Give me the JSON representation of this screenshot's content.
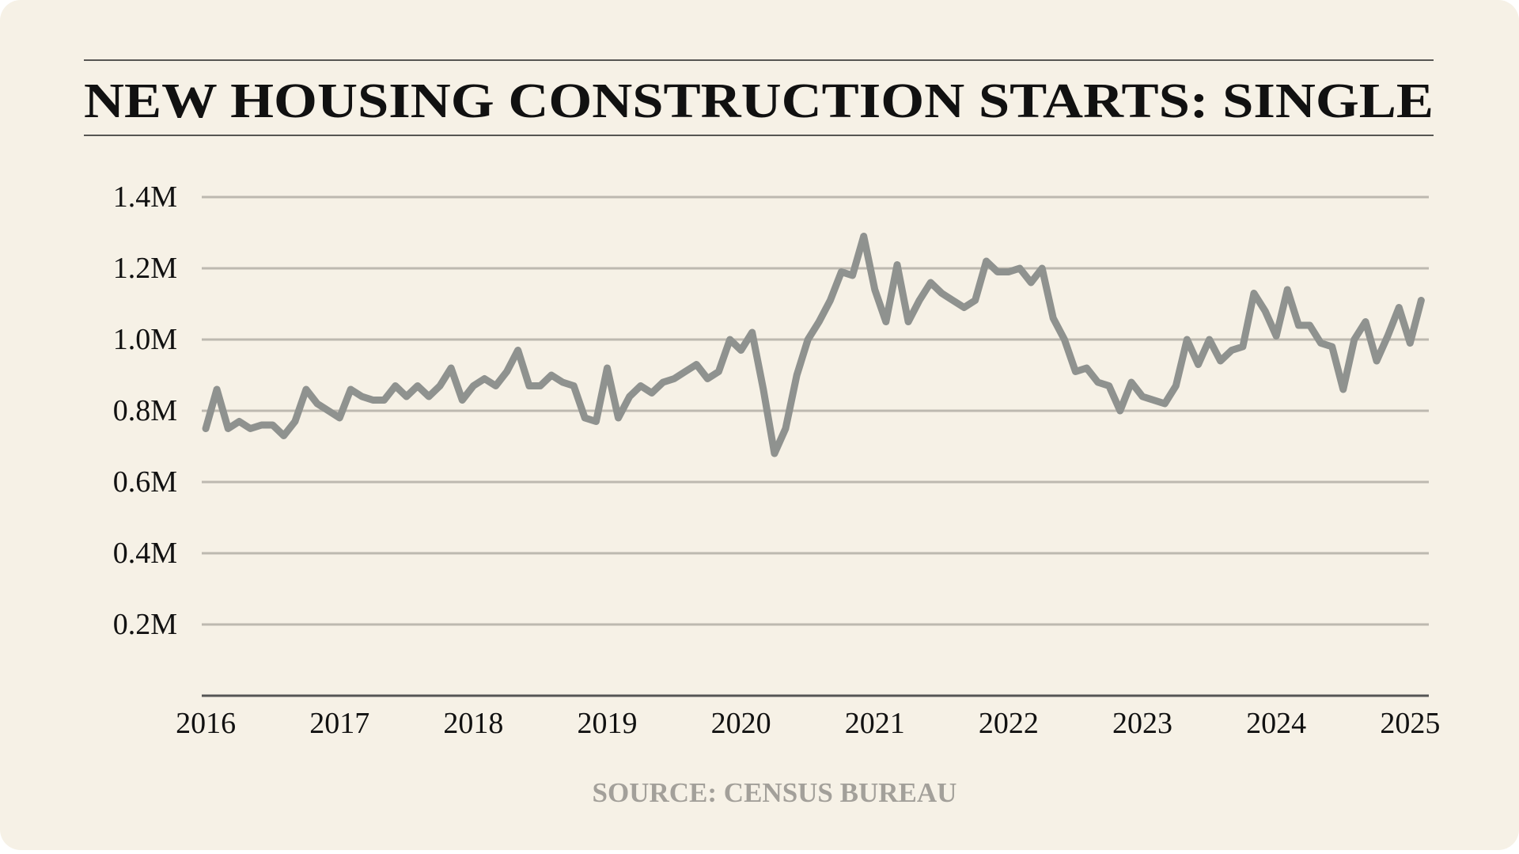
{
  "chart_data": {
    "type": "line",
    "title": "NEW HOUSING CONSTRUCTION STARTS: SINGLE",
    "source": "SOURCE: CENSUS BUREAU",
    "x": [
      2016,
      2016.083,
      2016.167,
      2016.25,
      2016.333,
      2016.417,
      2016.5,
      2016.583,
      2016.667,
      2016.75,
      2016.833,
      2016.917,
      2017,
      2017.083,
      2017.167,
      2017.25,
      2017.333,
      2017.417,
      2017.5,
      2017.583,
      2017.667,
      2017.75,
      2017.833,
      2017.917,
      2018,
      2018.083,
      2018.167,
      2018.25,
      2018.333,
      2018.417,
      2018.5,
      2018.583,
      2018.667,
      2018.75,
      2018.833,
      2018.917,
      2019,
      2019.083,
      2019.167,
      2019.25,
      2019.333,
      2019.417,
      2019.5,
      2019.583,
      2019.667,
      2019.75,
      2019.833,
      2019.917,
      2020,
      2020.083,
      2020.167,
      2020.25,
      2020.333,
      2020.417,
      2020.5,
      2020.583,
      2020.667,
      2020.75,
      2020.833,
      2020.917,
      2021,
      2021.083,
      2021.167,
      2021.25,
      2021.333,
      2021.417,
      2021.5,
      2021.583,
      2021.667,
      2021.75,
      2021.833,
      2021.917,
      2022,
      2022.083,
      2022.167,
      2022.25,
      2022.333,
      2022.417,
      2022.5,
      2022.583,
      2022.667,
      2022.75,
      2022.833,
      2022.917,
      2023,
      2023.083,
      2023.167,
      2023.25,
      2023.333,
      2023.417,
      2023.5,
      2023.583,
      2023.667,
      2023.75,
      2023.833,
      2023.917,
      2024,
      2024.083,
      2024.167,
      2024.25,
      2024.333,
      2024.417,
      2024.5,
      2024.583,
      2024.667,
      2024.75,
      2024.833,
      2024.917,
      2025,
      2025.083
    ],
    "series": [
      {
        "name": "Single",
        "color": "#8f928f",
        "values": [
          0.75,
          0.86,
          0.75,
          0.77,
          0.75,
          0.76,
          0.76,
          0.73,
          0.77,
          0.86,
          0.82,
          0.8,
          0.78,
          0.86,
          0.84,
          0.83,
          0.83,
          0.87,
          0.84,
          0.87,
          0.84,
          0.87,
          0.92,
          0.83,
          0.87,
          0.89,
          0.87,
          0.91,
          0.97,
          0.87,
          0.87,
          0.9,
          0.88,
          0.87,
          0.78,
          0.77,
          0.92,
          0.78,
          0.84,
          0.87,
          0.85,
          0.88,
          0.89,
          0.91,
          0.93,
          0.89,
          0.91,
          1.0,
          0.97,
          1.02,
          0.86,
          0.68,
          0.75,
          0.9,
          1.0,
          1.05,
          1.11,
          1.19,
          1.18,
          1.29,
          1.14,
          1.05,
          1.21,
          1.05,
          1.11,
          1.16,
          1.13,
          1.11,
          1.09,
          1.11,
          1.22,
          1.19,
          1.19,
          1.2,
          1.16,
          1.2,
          1.06,
          1.0,
          0.91,
          0.92,
          0.88,
          0.87,
          0.8,
          0.88,
          0.84,
          0.83,
          0.82,
          0.87,
          1.0,
          0.93,
          1.0,
          0.94,
          0.97,
          0.98,
          1.13,
          1.08,
          1.01,
          1.14,
          1.04,
          1.04,
          0.99,
          0.98,
          0.86,
          1.0,
          1.05,
          0.94,
          1.01,
          1.09,
          0.99,
          1.11
        ]
      }
    ],
    "xlim": [
      2015.97,
      2025.14
    ],
    "xticks": [
      2016,
      2017,
      2018,
      2019,
      2020,
      2021,
      2022,
      2023,
      2024,
      2025
    ],
    "ylim": [
      0,
      1.4
    ],
    "yticks": [
      {
        "value": 0.2,
        "label": "0.2M"
      },
      {
        "value": 0.4,
        "label": "0.4M"
      },
      {
        "value": 0.6,
        "label": "0.6M"
      },
      {
        "value": 0.8,
        "label": "0.8M"
      },
      {
        "value": 1.0,
        "label": "1.0M"
      },
      {
        "value": 1.2,
        "label": "1.2M"
      },
      {
        "value": 1.4,
        "label": "1.4M"
      }
    ],
    "grid": true
  }
}
